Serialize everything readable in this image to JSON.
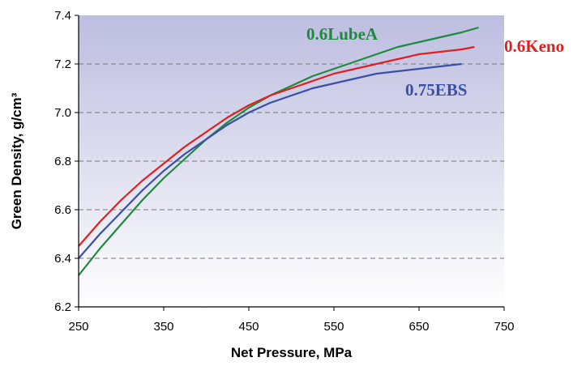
{
  "chart_data": {
    "type": "line",
    "title": "",
    "xlabel": "Net Pressure, MPa",
    "ylabel": "Green Density, g/cm³",
    "xlim": [
      250,
      750
    ],
    "ylim": [
      6.2,
      7.4
    ],
    "xticks": [
      "250",
      "350",
      "450",
      "550",
      "650",
      "750"
    ],
    "yticks": [
      "6.2",
      "6.4",
      "6.6",
      "6.8",
      "7.0",
      "7.2",
      "7.4"
    ],
    "grid": "horizontal-dashed",
    "background_gradient": [
      "#bdbde0",
      "#ffffff"
    ],
    "series": [
      {
        "name": "0.6LubeA",
        "color": "#1e8a3c",
        "x": [
          250,
          275,
          300,
          325,
          350,
          375,
          400,
          425,
          450,
          475,
          500,
          525,
          550,
          575,
          600,
          625,
          650,
          675,
          700,
          720
        ],
        "y": [
          6.33,
          6.44,
          6.54,
          6.64,
          6.73,
          6.81,
          6.89,
          6.96,
          7.02,
          7.07,
          7.11,
          7.15,
          7.18,
          7.21,
          7.24,
          7.27,
          7.29,
          7.31,
          7.33,
          7.35
        ]
      },
      {
        "name": "0.6Keno",
        "color": "#e02020",
        "x": [
          250,
          275,
          300,
          325,
          350,
          375,
          400,
          425,
          450,
          475,
          500,
          525,
          550,
          575,
          600,
          625,
          650,
          675,
          700,
          715
        ],
        "y": [
          6.45,
          6.55,
          6.64,
          6.72,
          6.79,
          6.86,
          6.92,
          6.98,
          7.03,
          7.07,
          7.1,
          7.13,
          7.16,
          7.18,
          7.2,
          7.22,
          7.24,
          7.25,
          7.26,
          7.27
        ]
      },
      {
        "name": "0.75EBS",
        "color": "#3a4fa8",
        "x": [
          250,
          275,
          300,
          325,
          350,
          375,
          400,
          425,
          450,
          475,
          500,
          525,
          550,
          575,
          600,
          625,
          650,
          675,
          700
        ],
        "y": [
          6.4,
          6.5,
          6.59,
          6.68,
          6.76,
          6.83,
          6.89,
          6.95,
          7.0,
          7.04,
          7.07,
          7.1,
          7.12,
          7.14,
          7.16,
          7.17,
          7.18,
          7.19,
          7.2
        ]
      }
    ]
  }
}
